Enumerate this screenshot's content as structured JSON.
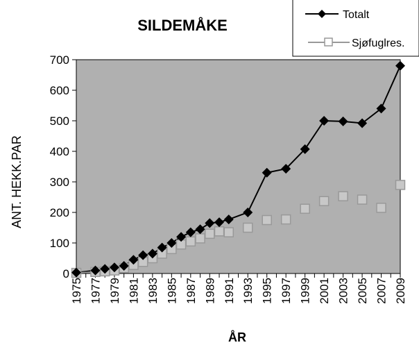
{
  "chart_data": {
    "type": "line",
    "title": "SILDEMÅKE",
    "xlabel": "ÅR",
    "ylabel": "ANT. HEKK.PAR",
    "xlim": [
      1975,
      2009
    ],
    "ylim": [
      0,
      700
    ],
    "y_ticks": [
      0,
      100,
      200,
      300,
      400,
      500,
      600,
      700
    ],
    "x_ticks": [
      "1975",
      "1977",
      "1979",
      "1981",
      "1983",
      "1985",
      "1987",
      "1989",
      "1991",
      "1993",
      "1995",
      "1997",
      "1999",
      "2001",
      "2003",
      "2005",
      "2007",
      "2009"
    ],
    "grid": false,
    "plot_background": "#b0b0b0",
    "legend_position": "top-right",
    "series": [
      {
        "name": "Totalt",
        "color": "#000000",
        "marker": "diamond-filled",
        "points": [
          [
            1975,
            3
          ],
          [
            1977,
            10
          ],
          [
            1978,
            15
          ],
          [
            1979,
            20
          ],
          [
            1980,
            25
          ],
          [
            1981,
            45
          ],
          [
            1982,
            60
          ],
          [
            1983,
            65
          ],
          [
            1984,
            85
          ],
          [
            1985,
            100
          ],
          [
            1986,
            120
          ],
          [
            1987,
            135
          ],
          [
            1988,
            145
          ],
          [
            1989,
            165
          ],
          [
            1990,
            168
          ],
          [
            1991,
            177
          ],
          [
            1993,
            200
          ],
          [
            1995,
            330
          ],
          [
            1997,
            343
          ],
          [
            1999,
            407
          ],
          [
            2001,
            500
          ],
          [
            2003,
            498
          ],
          [
            2005,
            492
          ],
          [
            2007,
            540
          ],
          [
            2009,
            680
          ]
        ]
      },
      {
        "name": "Sjøfuglres.",
        "color": "#999999",
        "marker": "square-open",
        "points": [
          [
            1975,
            2
          ],
          [
            1977,
            5
          ],
          [
            1978,
            7
          ],
          [
            1979,
            10
          ],
          [
            1980,
            18
          ],
          [
            1981,
            28
          ],
          [
            1982,
            38
          ],
          [
            1983,
            50
          ],
          [
            1984,
            65
          ],
          [
            1985,
            80
          ],
          [
            1986,
            95
          ],
          [
            1987,
            105
          ],
          [
            1988,
            115
          ],
          [
            1989,
            130
          ],
          [
            1990,
            138
          ],
          [
            1991,
            135
          ],
          [
            1993,
            150
          ],
          [
            1995,
            175
          ],
          [
            1997,
            177
          ],
          [
            1999,
            212
          ],
          [
            2001,
            237
          ],
          [
            2003,
            253
          ],
          [
            2005,
            242
          ],
          [
            2007,
            215
          ],
          [
            2009,
            290
          ]
        ],
        "line_end_year": 1991
      }
    ]
  }
}
